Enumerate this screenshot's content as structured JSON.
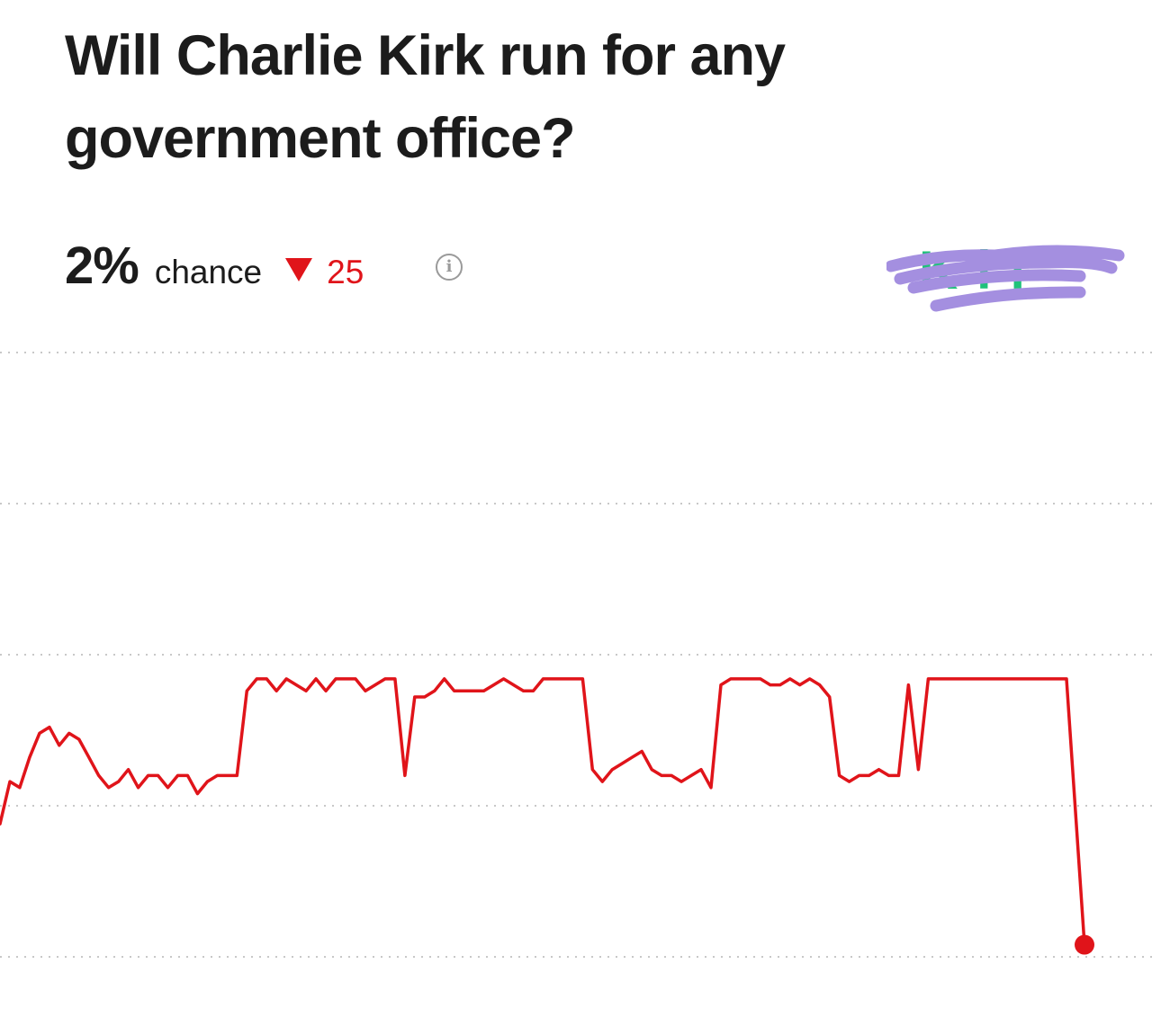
{
  "market": {
    "title": "Will Charlie Kirk run for any government office?",
    "probability": "2%",
    "chance_label": "chance",
    "change_value": "25",
    "change_direction": "down",
    "info_icon": "info-icon",
    "brand_name": "Kalshi",
    "brand_obscured": true
  },
  "colors": {
    "line": "#e0141a",
    "change": "#e0141a",
    "brand": "#1fc27a",
    "redaction": "#a48fe0",
    "grid": "#c8c8c8"
  },
  "chart_data": {
    "type": "line",
    "grid": true,
    "ylim": [
      0,
      100
    ],
    "gridlines": [
      100,
      75,
      50,
      25,
      0
    ],
    "series": [
      {
        "values": [
          22,
          29,
          28,
          33,
          37,
          38,
          35,
          37,
          36,
          33,
          30,
          28,
          29,
          31,
          28,
          30,
          30,
          28,
          30,
          30,
          27,
          29,
          30,
          30,
          30,
          44,
          46,
          46,
          44,
          46,
          45,
          44,
          46,
          44,
          46,
          46,
          46,
          44,
          45,
          46,
          46,
          30,
          43,
          43,
          44,
          46,
          44,
          44,
          44,
          44,
          45,
          46,
          45,
          44,
          44,
          46,
          46,
          46,
          46,
          46,
          31,
          29,
          31,
          32,
          33,
          34,
          31,
          30,
          30,
          29,
          30,
          31,
          28,
          45,
          46,
          46,
          46,
          46,
          45,
          45,
          46,
          45,
          46,
          45,
          43,
          30,
          29,
          30,
          30,
          31,
          30,
          30,
          45,
          31,
          46,
          46,
          46,
          46,
          46,
          46,
          46,
          46,
          46,
          46,
          46,
          46,
          46,
          46,
          46,
          2
        ]
      }
    ]
  }
}
